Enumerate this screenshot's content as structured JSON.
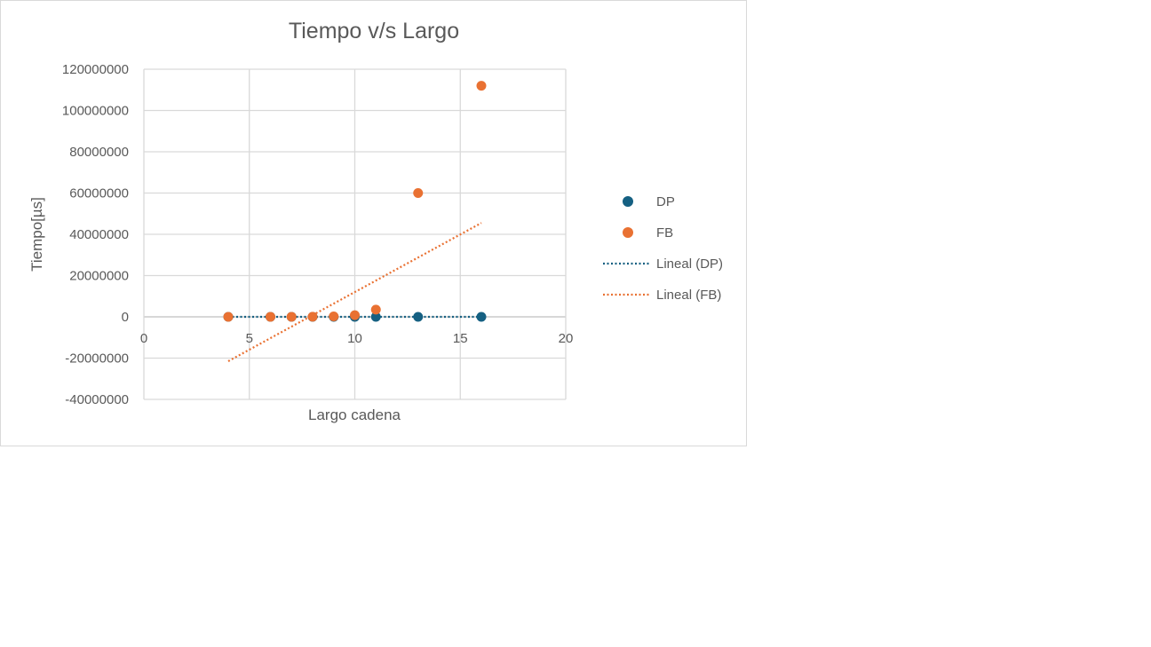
{
  "chart_data": {
    "type": "scatter",
    "title": "Tiempo v/s Largo",
    "xlabel": "Largo cadena",
    "ylabel": "Tiempo[µs]",
    "xlim": [
      0,
      20
    ],
    "ylim": [
      -40000000,
      120000000
    ],
    "xticks": [
      "0",
      "5",
      "10",
      "15",
      "20"
    ],
    "yticks": [
      "-40000000",
      "-20000000",
      "0",
      "20000000",
      "40000000",
      "60000000",
      "80000000",
      "100000000",
      "120000000"
    ],
    "grid": true,
    "legend_position": "right",
    "series": [
      {
        "name": "DP",
        "color": "#156082",
        "x": [
          4,
          6,
          7,
          8,
          9,
          10,
          11,
          13,
          16
        ],
        "y": [
          0,
          0,
          0,
          0,
          0,
          0,
          0,
          0,
          0
        ]
      },
      {
        "name": "FB",
        "color": "#E97132",
        "x": [
          4,
          6,
          7,
          8,
          9,
          10,
          11,
          13,
          16
        ],
        "y": [
          300,
          3000,
          12000,
          50000,
          200000,
          800000,
          3500000,
          60000000,
          112000000
        ]
      }
    ],
    "trendlines": [
      {
        "name": "Lineal (DP)",
        "color": "#156082",
        "style": "dotted",
        "x": [
          4,
          16
        ],
        "y": [
          0,
          0
        ]
      },
      {
        "name": "Lineal (FB)",
        "color": "#E97132",
        "style": "dotted",
        "x": [
          4,
          16
        ],
        "y": [
          -21500000,
          45500000
        ]
      }
    ]
  }
}
